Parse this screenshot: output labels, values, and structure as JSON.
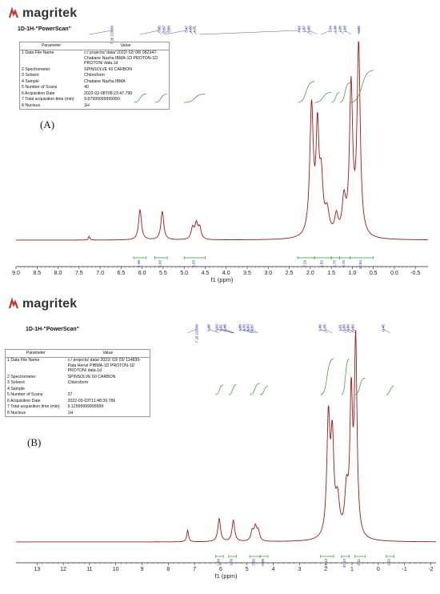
{
  "chart_data": [
    {
      "type": "line",
      "panel_label": "(A)",
      "logo_text": "magritek",
      "title": "1D-1H-\"PowerScan\"",
      "xlabel": "f1 (ppm)",
      "x_reversed": true,
      "xlim": [
        -0.8,
        9.0
      ],
      "ticks": [
        "9.0",
        "8.5",
        "8.0",
        "7.5",
        "7.0",
        "6.5",
        "6.0",
        "5.5",
        "5.0",
        "4.5",
        "4.0",
        "3.5",
        "3.0",
        "2.5",
        "2.0",
        "1.5",
        "1.0",
        "0.5",
        "0.0",
        "-0.5"
      ],
      "params": {
        "header": [
          "Parameter",
          "Value"
        ],
        "rows": [
          [
            "1 Data File Name",
            "c:/ projects/ data/ 2022/ 02/ 08/ 082347-Chabane Nazha IBMA-1D PROTON-1D PROTON/ data.1d"
          ],
          [
            "2 Spectrometer",
            "SPINSOLVE 60 CARBON"
          ],
          [
            "3 Solvent",
            "Chloroform"
          ],
          [
            "4 Sample",
            "Chabane Nazha IBMA"
          ],
          [
            "5 Number of Scans",
            "40"
          ],
          [
            "6 Acquisition Date",
            "2022-02-08T08:23:47.799"
          ],
          [
            "7 Total acquisition time (min)",
            "9.87999999999999"
          ],
          [
            "8 Nucleus",
            "1H"
          ]
        ]
      },
      "peak_labels": [
        "7.26 CDCl3",
        "6.05",
        "5.57",
        "5.50",
        "5.47",
        "4.80",
        "4.71",
        "4.63",
        "1.97",
        "1.83",
        "1.74",
        "1.38",
        "1.20",
        "1.03",
        "0.85"
      ],
      "integrals": [
        {
          "from": 6.2,
          "to": 5.9,
          "label": "1.00"
        },
        {
          "from": 5.7,
          "to": 5.4,
          "label": "1.03"
        },
        {
          "from": 5.0,
          "to": 4.5,
          "label": "1.03"
        },
        {
          "from": 2.3,
          "to": 1.9,
          "label": "7.29"
        },
        {
          "from": 1.9,
          "to": 1.5,
          "label": "1.82"
        },
        {
          "from": 1.5,
          "to": 1.3,
          "label": "1.75"
        },
        {
          "from": 1.3,
          "to": 1.05,
          "label": "6.75"
        },
        {
          "from": 1.05,
          "to": 0.5,
          "label": "12.84"
        }
      ],
      "peaks": [
        {
          "x": 7.26,
          "h": 0.02,
          "w": 0.02
        },
        {
          "x": 6.05,
          "h": 0.16,
          "w": 0.04
        },
        {
          "x": 5.52,
          "h": 0.15,
          "w": 0.04
        },
        {
          "x": 4.8,
          "h": 0.06,
          "w": 0.04
        },
        {
          "x": 4.71,
          "h": 0.08,
          "w": 0.04
        },
        {
          "x": 4.63,
          "h": 0.06,
          "w": 0.04
        },
        {
          "x": 1.97,
          "h": 0.68,
          "w": 0.05
        },
        {
          "x": 1.83,
          "h": 0.52,
          "w": 0.04
        },
        {
          "x": 1.74,
          "h": 0.28,
          "w": 0.05
        },
        {
          "x": 1.6,
          "h": 0.12,
          "w": 0.06
        },
        {
          "x": 1.38,
          "h": 0.1,
          "w": 0.05
        },
        {
          "x": 1.2,
          "h": 0.18,
          "w": 0.05
        },
        {
          "x": 1.03,
          "h": 0.78,
          "w": 0.045
        },
        {
          "x": 0.85,
          "h": 1.0,
          "w": 0.045
        }
      ]
    },
    {
      "type": "line",
      "panel_label": "(B)",
      "logo_text": "magritek",
      "title": "1D-1H-\"PowerScan\"",
      "xlabel": "f1 (ppm)",
      "x_reversed": true,
      "xlim": [
        -2.2,
        13.8
      ],
      "ticks": [
        "13",
        "12",
        "11",
        "10",
        "9",
        "8",
        "7",
        "6",
        "5",
        "4",
        "3",
        "2",
        "1",
        "0",
        "-1",
        "-2"
      ],
      "params": {
        "header": [
          "Parameter",
          "Value"
        ],
        "rows": [
          [
            "1 Data File Name",
            "c:/ projects/ data/ 2022/ 03/ 03/ 114839-Pata Hervé PIBMA-1D PROTON-1D PROTON/ data.1d"
          ],
          [
            "2 Spectrometer",
            "SPINSOLVE 60 CARBON"
          ],
          [
            "3 Solvent",
            "Chloroform"
          ],
          [
            "4 Sample",
            ""
          ],
          [
            "5 Number of Scans",
            "37"
          ],
          [
            "6 Acquisition Date",
            "2022-03-03T11:48:39.786"
          ],
          [
            "7 Total acquisition time (min)",
            "9.12999999999999"
          ],
          [
            "8 Nucleus",
            "1H"
          ]
        ]
      },
      "peak_labels": [
        "7.26 CDCl3",
        "6.06",
        "5.53",
        "5.51",
        "5.48",
        "4.80",
        "4.72",
        "4.63",
        "4.57",
        "1.90",
        "1.75",
        "1.21",
        "1.03",
        "0.89",
        "0.83",
        "-0.45"
      ],
      "integrals": [
        {
          "from": 6.2,
          "to": 5.9,
          "label": "1.66"
        },
        {
          "from": 5.7,
          "to": 5.4,
          "label": "1.76"
        },
        {
          "from": 4.9,
          "to": 4.5,
          "label": "2.50"
        },
        {
          "from": 4.5,
          "to": 4.2,
          "label": "0.98"
        },
        {
          "from": 2.2,
          "to": 1.7,
          "label": "17.13"
        },
        {
          "from": 1.4,
          "to": 1.1,
          "label": "37.13"
        },
        {
          "from": 0.9,
          "to": 0.5,
          "label": "5.11"
        },
        {
          "from": -0.3,
          "to": -0.6,
          "label": "1.02"
        }
      ],
      "peaks": [
        {
          "x": 7.26,
          "h": 0.06,
          "w": 0.04
        },
        {
          "x": 6.06,
          "h": 0.12,
          "w": 0.06
        },
        {
          "x": 5.52,
          "h": 0.11,
          "w": 0.06
        },
        {
          "x": 4.8,
          "h": 0.05,
          "w": 0.06
        },
        {
          "x": 4.68,
          "h": 0.07,
          "w": 0.06
        },
        {
          "x": 4.57,
          "h": 0.05,
          "w": 0.06
        },
        {
          "x": 1.9,
          "h": 0.6,
          "w": 0.07
        },
        {
          "x": 1.75,
          "h": 0.48,
          "w": 0.07
        },
        {
          "x": 1.55,
          "h": 0.18,
          "w": 0.09
        },
        {
          "x": 1.21,
          "h": 0.22,
          "w": 0.08
        },
        {
          "x": 1.03,
          "h": 0.7,
          "w": 0.06
        },
        {
          "x": 0.86,
          "h": 1.0,
          "w": 0.06
        }
      ]
    }
  ],
  "colors": {
    "spectrum": "#a01818",
    "integral": "#2a9a2a",
    "peak_label": "#2a2a9a",
    "axis": "#222222",
    "logo_red": "#c0392b"
  },
  "icons": {
    "logo": "magritek-logo-icon"
  }
}
